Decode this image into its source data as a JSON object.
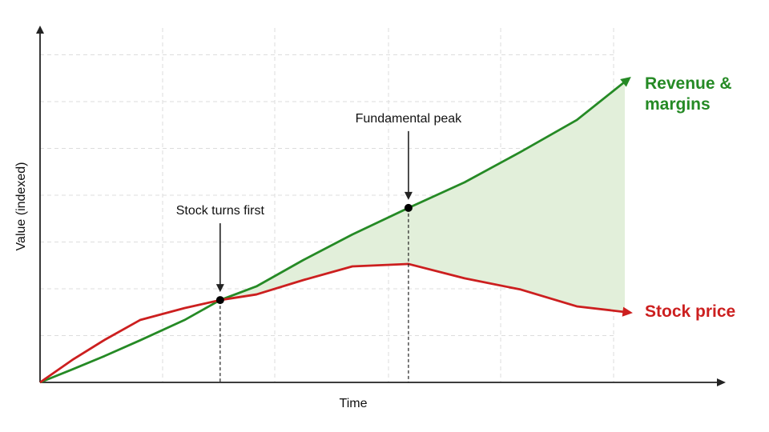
{
  "chart_data": {
    "type": "line",
    "x_label": "Time",
    "y_label": "Value (indexed)",
    "x": [
      0,
      5.5,
      11,
      17.1,
      24.7,
      30.8,
      37,
      45,
      53.4,
      63,
      72.6,
      82.2,
      91.8,
      100
    ],
    "series": [
      {
        "name": "Revenue & margins",
        "color": "#258a25",
        "values": [
          0,
          3.7,
          7.5,
          12,
          17.8,
          23.5,
          27.4,
          34.9,
          42.2,
          49.8,
          57.1,
          65.8,
          74.9,
          85.8
        ]
      },
      {
        "name": "Stock price",
        "color": "#cc1f1f",
        "values": [
          0,
          6.4,
          12.1,
          17.8,
          21.2,
          23.5,
          25.1,
          29.2,
          33.1,
          33.8,
          29.7,
          26.5,
          21.7,
          20.1
        ]
      }
    ],
    "xlim": [
      0,
      100
    ],
    "ylim": [
      0,
      100
    ],
    "grid": true,
    "gap_fill": "#e2efda",
    "annotations": [
      {
        "text": "Stock turns first",
        "x": 30.8,
        "y": 23.5
      },
      {
        "text": "Fundamental peak",
        "x": 63,
        "y": 49.8
      }
    ]
  }
}
